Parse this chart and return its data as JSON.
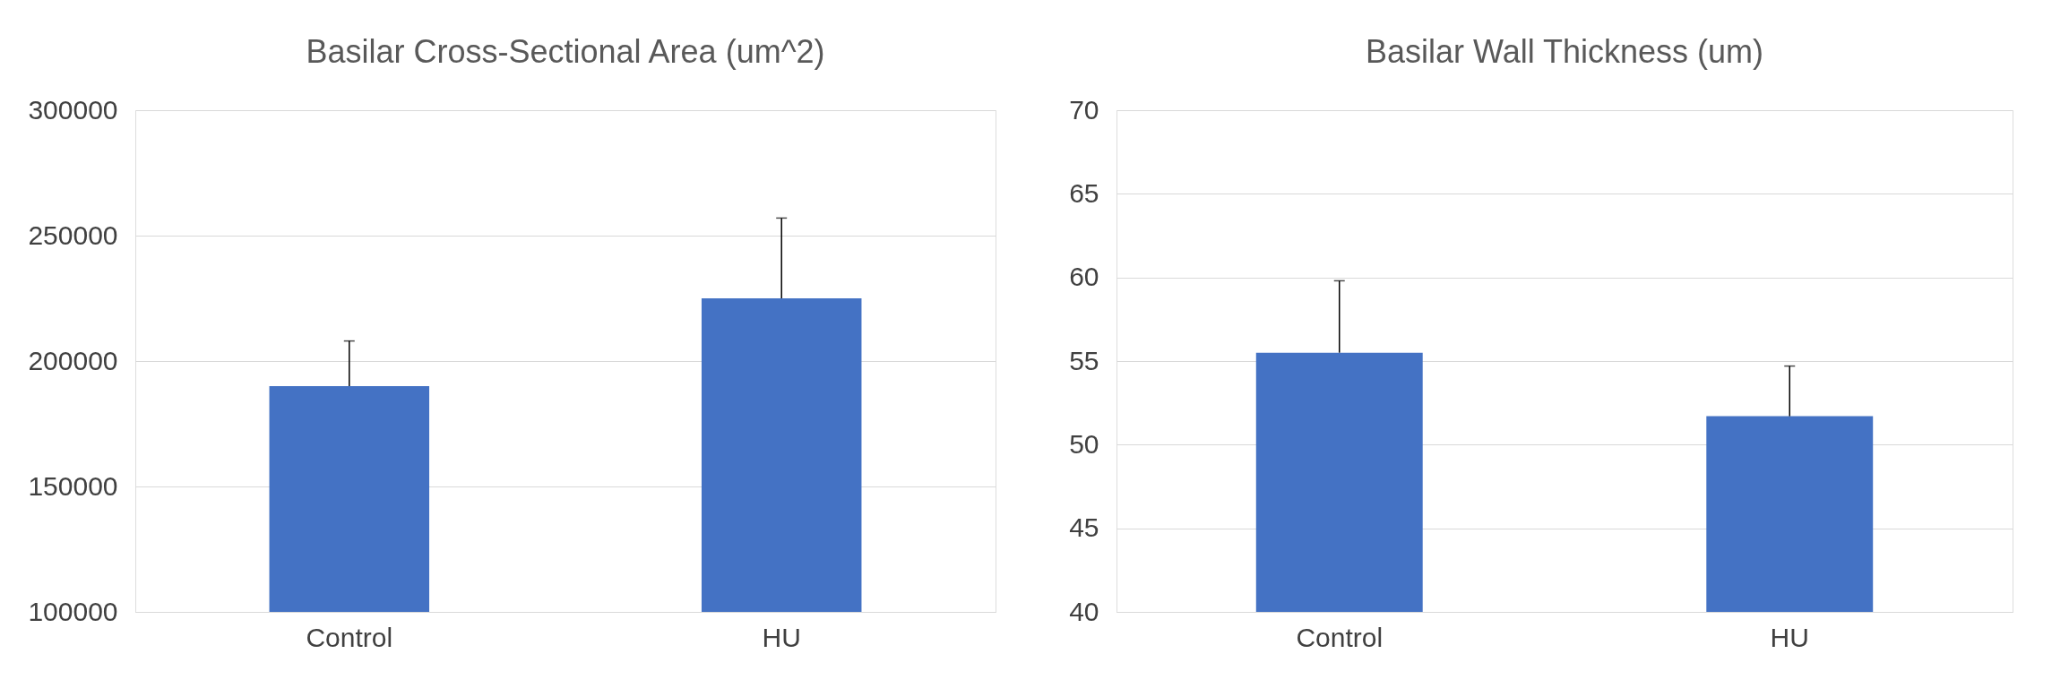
{
  "chart_data": [
    {
      "type": "bar",
      "title": "Basilar Cross-Sectional Area (um^2)",
      "categories": [
        "Control",
        "HU"
      ],
      "values": [
        190000,
        225000
      ],
      "color": "#4472c4",
      "errors": [
        [
          190000,
          208000
        ],
        [
          225000,
          257000
        ]
      ],
      "ylim": [
        100000,
        300000
      ],
      "yticks": [
        100000,
        150000,
        200000,
        250000,
        300000
      ],
      "grid": "y"
    },
    {
      "type": "bar",
      "title": "Basilar Wall Thickness (um)",
      "categories": [
        "Control",
        "HU"
      ],
      "values": [
        55.5,
        51.7
      ],
      "color": "#4472c4",
      "errors": [
        [
          55.5,
          59.8
        ],
        [
          51.7,
          54.7
        ]
      ],
      "ylim": [
        40,
        70
      ],
      "yticks": [
        40,
        45,
        50,
        55,
        60,
        65,
        70
      ],
      "grid": "y"
    }
  ]
}
